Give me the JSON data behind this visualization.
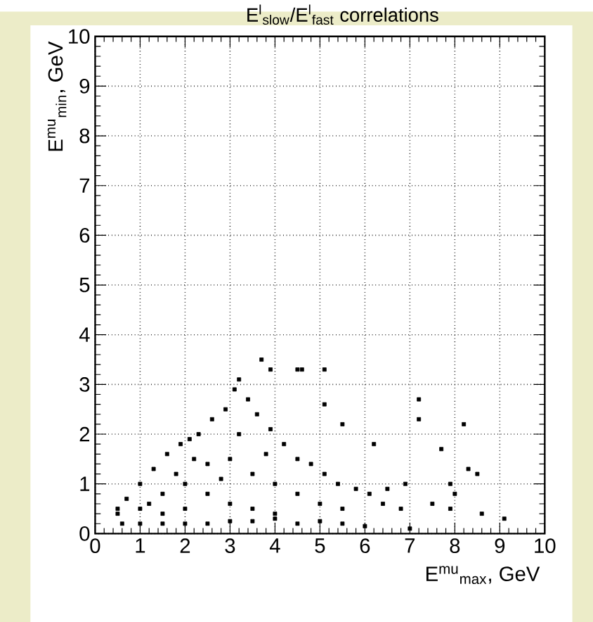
{
  "chart_data": {
    "type": "scatter",
    "title": "E$^{l}$$_{slow}$/E$^{l}$$_{fast}$ correlations",
    "xlabel": "E$^{mu}$$_{max}$, GeV",
    "ylabel": "E$^{mu}$$_{min}$, GeV",
    "xlim": [
      0,
      10
    ],
    "ylim": [
      0,
      10
    ],
    "xticks": [
      0,
      1,
      2,
      3,
      4,
      5,
      6,
      7,
      8,
      9,
      10
    ],
    "yticks": [
      0,
      1,
      2,
      3,
      4,
      5,
      6,
      7,
      8,
      9,
      10
    ],
    "grid": true,
    "marker": "square",
    "series": [
      {
        "color": "#000000",
        "x": [
          0.5,
          0.5,
          0.7,
          1.0,
          1.3,
          1.6,
          1.9,
          2.1,
          2.3,
          2.6,
          2.9,
          3.1,
          3.2,
          3.4,
          3.6,
          3.9,
          4.2,
          4.5,
          4.8,
          5.1,
          5.4,
          5.8,
          6.1,
          6.4,
          6.8,
          0.6,
          1.0,
          1.5,
          2.0,
          2.5,
          3.0,
          3.5,
          4.0,
          4.5,
          5.0,
          5.5,
          6.0,
          7.0,
          1.0,
          1.5,
          2.0,
          2.5,
          3.0,
          3.5,
          4.0,
          1.5,
          2.0,
          2.5,
          3.0,
          3.5,
          4.0,
          4.5,
          5.0,
          5.5,
          3.2,
          3.8,
          2.8,
          1.2,
          2.2,
          1.8,
          3.7,
          3.9,
          4.5,
          4.6,
          5.1,
          5.1,
          5.5,
          6.2,
          7.2,
          7.2,
          7.7,
          8.2,
          8.3,
          8.5,
          7.9,
          8.0,
          8.6,
          9.1,
          6.9,
          6.5,
          7.5,
          7.9
        ],
        "values": [
          0.4,
          0.5,
          0.7,
          1.0,
          1.3,
          1.6,
          1.8,
          1.9,
          2.0,
          2.3,
          2.5,
          2.9,
          3.1,
          2.7,
          2.4,
          2.1,
          1.8,
          1.5,
          1.4,
          1.2,
          1.0,
          0.9,
          0.8,
          0.6,
          0.5,
          0.2,
          0.2,
          0.2,
          0.2,
          0.2,
          0.25,
          0.25,
          0.3,
          0.2,
          0.25,
          0.2,
          0.15,
          0.1,
          0.5,
          0.8,
          1.0,
          0.8,
          0.6,
          0.5,
          0.4,
          0.4,
          0.5,
          1.4,
          1.5,
          1.2,
          1.0,
          0.8,
          0.6,
          0.5,
          2.0,
          1.6,
          1.1,
          0.6,
          1.5,
          1.2,
          3.5,
          3.3,
          3.3,
          3.3,
          3.3,
          2.6,
          2.2,
          1.8,
          2.7,
          2.3,
          1.7,
          2.2,
          1.3,
          1.2,
          1.0,
          0.8,
          0.4,
          0.3,
          1.0,
          0.9,
          0.6,
          0.5
        ]
      }
    ]
  }
}
